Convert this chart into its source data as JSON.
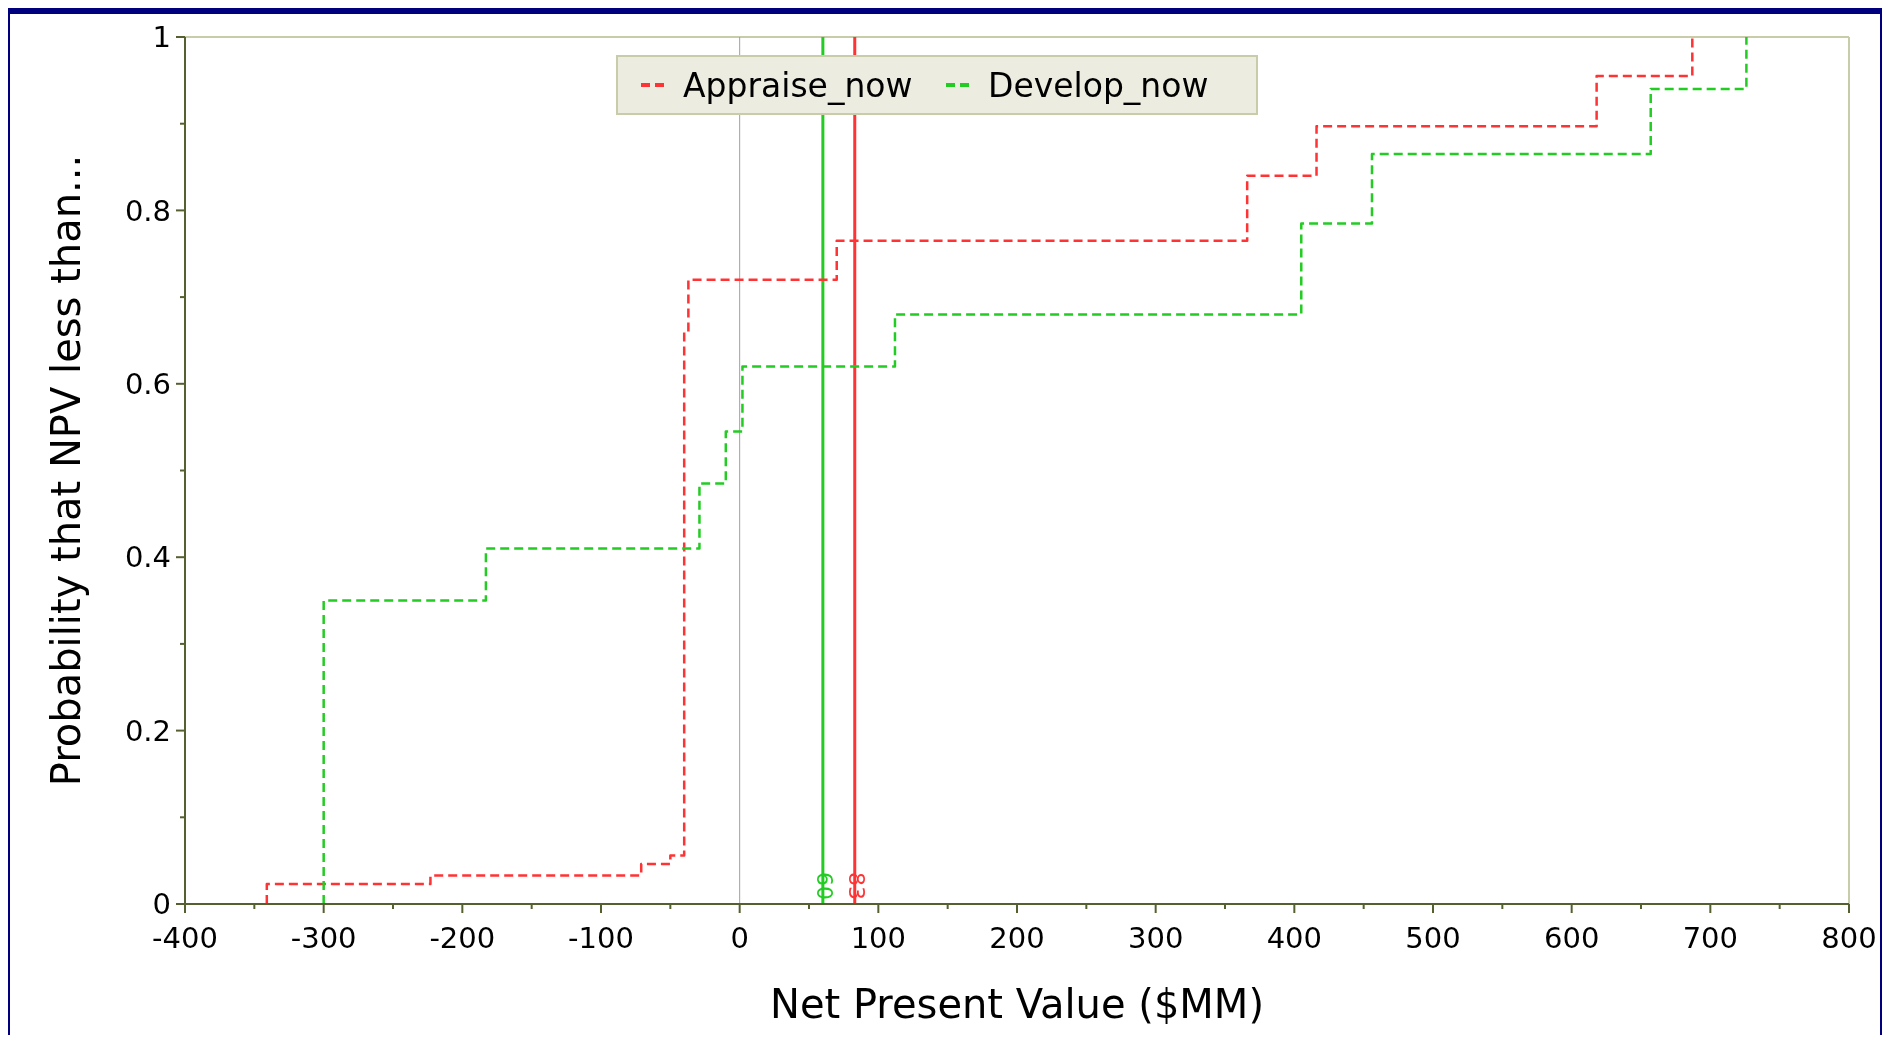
{
  "chart_data": {
    "type": "step",
    "xlabel": "Net Present Value ($MM)",
    "ylabel": "Probability that NPV less than...",
    "series": [
      {
        "name": "Appraise_now",
        "color": "#ff3333",
        "x": [
          -341,
          -341,
          -223,
          -71,
          -50,
          -40,
          -37,
          70,
          366,
          416,
          618,
          687
        ],
        "values": [
          0,
          0.023,
          0.033,
          0.046,
          0.056,
          0.66,
          0.72,
          0.765,
          0.84,
          0.897,
          0.955,
          1
        ]
      },
      {
        "name": "Develop_now",
        "color": "#22cc22",
        "x": [
          -300,
          -300,
          -183,
          -29,
          -10,
          2,
          112,
          405,
          456,
          657,
          726
        ],
        "values": [
          0,
          0.35,
          0.41,
          0.485,
          0.545,
          0.62,
          0.68,
          0.785,
          0.865,
          0.94,
          1
        ]
      }
    ],
    "xlim": [
      -400,
      800
    ],
    "xticks": [
      -400,
      {
        "value": -350,
        "label": null
      },
      -300,
      {
        "value": -250,
        "label": null
      },
      -200,
      {
        "value": -150,
        "label": null
      },
      -100,
      {
        "value": -50,
        "label": null
      },
      0,
      {
        "value": 50,
        "label": null
      },
      100,
      {
        "value": 150,
        "label": null
      },
      200,
      {
        "value": 250,
        "label": null
      },
      300,
      {
        "value": 350,
        "label": null
      },
      400,
      {
        "value": 450,
        "label": null
      },
      500,
      {
        "value": 550,
        "label": null
      },
      600,
      {
        "value": 650,
        "label": null
      },
      700,
      {
        "value": 750,
        "label": null
      },
      800
    ],
    "ylim": [
      0,
      1
    ],
    "yticks": [
      0,
      {
        "value": 0.1,
        "label": null
      },
      0.2,
      {
        "value": 0.3,
        "label": null
      },
      0.4,
      {
        "value": 0.5,
        "label": null
      },
      0.6,
      {
        "value": 0.7,
        "label": null
      },
      0.8,
      {
        "value": 0.9,
        "label": null
      },
      1
    ],
    "ref_lines": [
      {
        "axis": "x",
        "value": 0,
        "label": null,
        "color": "#a0a0a0",
        "line_style": "solid"
      },
      {
        "axis": "x",
        "value": 60,
        "label": "60",
        "color": "#22cc22",
        "line_style": "solid"
      },
      {
        "axis": "x",
        "value": 83,
        "label": "83",
        "color": "#ff3333",
        "line_style": "solid"
      }
    ],
    "line_style": "dashed",
    "legend": "top",
    "grid": false
  }
}
